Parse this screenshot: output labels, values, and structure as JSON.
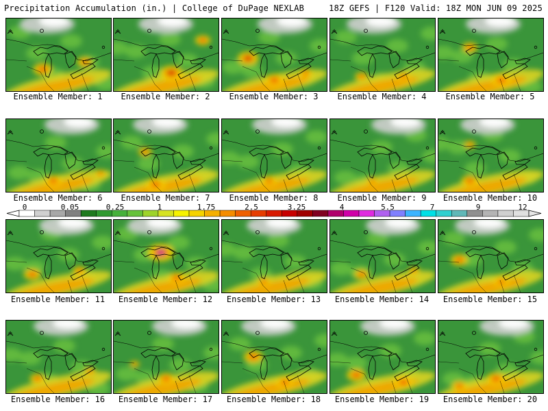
{
  "header": {
    "title_left": "Precipitation Accumulation (in.) | College of DuPage NEXLAB",
    "title_right": "18Z GEFS | F120 Valid: 18Z MON JUN 09 2025"
  },
  "colorbar": {
    "tick_labels": [
      "0",
      "0.05",
      "0.25",
      "1",
      "1.75",
      "2.5",
      "3.25",
      "4",
      "5.5",
      "7",
      "9",
      "12"
    ],
    "colors": [
      "#ffffff",
      "#d0d0d0",
      "#a8a8a8",
      "#808080",
      "#1e7a1e",
      "#2f9a2f",
      "#46b13a",
      "#66c23a",
      "#9ed42a",
      "#d6e322",
      "#f7f300",
      "#f5d300",
      "#f5b000",
      "#f58c00",
      "#f06000",
      "#e63c00",
      "#d81a00",
      "#c80000",
      "#a00000",
      "#800020",
      "#b0006c",
      "#d000a8",
      "#e02ae0",
      "#b060f0",
      "#8080ff",
      "#3cb4ff",
      "#00e0e6",
      "#30d0d0",
      "#60b8b8",
      "#909090",
      "#b4b4b4",
      "#d0d0d0",
      "#e0e0e0"
    ]
  },
  "panels": [
    {
      "label": "Ensemble Member: 1",
      "hot": [
        [
          0.35,
          0.7,
          1.0
        ],
        [
          0.75,
          0.6,
          0.8
        ]
      ]
    },
    {
      "label": "Ensemble Member: 2",
      "hot": [
        [
          0.55,
          0.75,
          1.2
        ],
        [
          0.85,
          0.3,
          0.8
        ]
      ]
    },
    {
      "label": "Ensemble Member: 3",
      "hot": [
        [
          0.25,
          0.55,
          1.1
        ],
        [
          0.5,
          0.85,
          1.0
        ],
        [
          0.8,
          0.75,
          0.7
        ]
      ]
    },
    {
      "label": "Ensemble Member: 4",
      "hot": [
        [
          0.3,
          0.8,
          0.7
        ],
        [
          0.7,
          0.8,
          0.7
        ]
      ]
    },
    {
      "label": "Ensemble Member: 5",
      "hot": [
        [
          0.3,
          0.4,
          0.8
        ],
        [
          0.6,
          0.85,
          1.0
        ]
      ]
    },
    {
      "label": "Ensemble Member: 6",
      "hot": [
        [
          0.45,
          0.85,
          0.9
        ],
        [
          0.9,
          0.75,
          0.6
        ]
      ]
    },
    {
      "label": "Ensemble Member: 7",
      "hot": [
        [
          0.3,
          0.45,
          0.7
        ],
        [
          0.4,
          0.9,
          1.0
        ]
      ]
    },
    {
      "label": "Ensemble Member: 8",
      "hot": [
        [
          0.45,
          0.85,
          0.8
        ]
      ]
    },
    {
      "label": "Ensemble Member: 9",
      "hot": [
        [
          0.4,
          0.85,
          0.6
        ]
      ]
    },
    {
      "label": "Ensemble Member: 10",
      "hot": [
        [
          0.3,
          0.85,
          0.9
        ],
        [
          0.3,
          0.35,
          0.6
        ]
      ]
    },
    {
      "label": "Ensemble Member: 11",
      "hot": [
        [
          0.25,
          0.75,
          0.9
        ],
        [
          0.7,
          0.7,
          0.7
        ]
      ]
    },
    {
      "label": "Ensemble Member: 12",
      "hot": [
        [
          0.45,
          0.45,
          1.4
        ],
        [
          0.6,
          0.8,
          0.9
        ]
      ]
    },
    {
      "label": "Ensemble Member: 13",
      "hot": [
        [
          0.4,
          0.85,
          0.7
        ]
      ]
    },
    {
      "label": "Ensemble Member: 14",
      "hot": [
        [
          0.3,
          0.75,
          0.8
        ],
        [
          0.8,
          0.7,
          0.6
        ]
      ]
    },
    {
      "label": "Ensemble Member: 15",
      "hot": [
        [
          0.2,
          0.55,
          0.9
        ],
        [
          0.6,
          0.85,
          0.8
        ]
      ]
    },
    {
      "label": "Ensemble Member: 16",
      "hot": [
        [
          0.3,
          0.8,
          0.8
        ],
        [
          0.8,
          0.7,
          0.6
        ]
      ]
    },
    {
      "label": "Ensemble Member: 17",
      "hot": [
        [
          0.5,
          0.8,
          0.9
        ],
        [
          0.2,
          0.6,
          0.5
        ]
      ]
    },
    {
      "label": "Ensemble Member: 18",
      "hot": [
        [
          0.3,
          0.5,
          1.0
        ],
        [
          0.6,
          0.85,
          0.9
        ]
      ]
    },
    {
      "label": "Ensemble Member: 19",
      "hot": [
        [
          0.25,
          0.75,
          1.0
        ],
        [
          0.7,
          0.85,
          1.0
        ]
      ]
    },
    {
      "label": "Ensemble Member: 20",
      "hot": [
        [
          0.55,
          0.8,
          1.0
        ],
        [
          0.2,
          0.9,
          0.8
        ]
      ]
    }
  ]
}
